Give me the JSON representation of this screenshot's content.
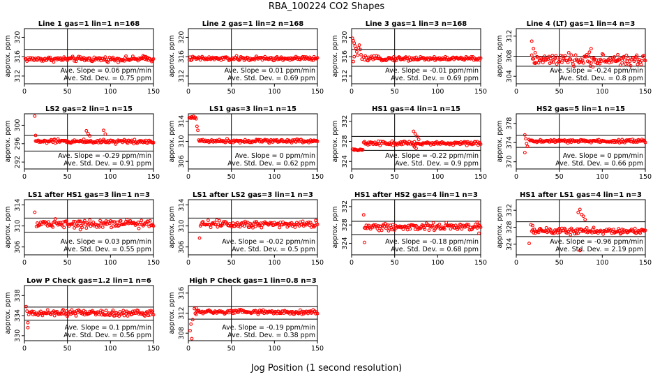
{
  "figure": {
    "title": "RBA_100224  CO2 Shapes",
    "xlabel": "Jog Position (1 second resolution)"
  },
  "style": {
    "marker_color": "#ff0000",
    "line_color": "#000000"
  },
  "chart_data": [
    {
      "type": "scatter",
      "title": "Line 1 gas=1 lin=1 n=168",
      "ylabel": "approx. ppm",
      "xlim": [
        0,
        150
      ],
      "ylim": [
        310.4,
        321.8
      ],
      "xticks": [
        0,
        50,
        100,
        150
      ],
      "yticks": [
        312,
        316,
        320
      ],
      "vline": 50,
      "hlines": [
        317.5,
        314.0
      ],
      "base": 315.5,
      "noise": 0.25,
      "x_start": 1,
      "spikes": [
        [
          138,
          316.2
        ],
        [
          141,
          316.0
        ],
        [
          143,
          315.8
        ]
      ],
      "slope_label": "Ave. Slope =",
      "slope_value": "0.06 ppm/min",
      "sd_label": "Ave. Std. Dev. =",
      "sd_value": "0.75 ppm"
    },
    {
      "type": "scatter",
      "title": "Line 2 gas=1 lin=2 n=168",
      "ylabel": "approx. ppm",
      "xlim": [
        0,
        150
      ],
      "ylim": [
        310.4,
        321.8
      ],
      "xticks": [
        0,
        50,
        100,
        150
      ],
      "yticks": [
        312,
        316,
        320
      ],
      "vline": 50,
      "hlines": [
        317.5,
        314.0
      ],
      "base": 315.6,
      "noise": 0.22,
      "x_start": 1,
      "spikes": [],
      "slope_label": "Ave. Slope =",
      "slope_value": "0.01 ppm/min",
      "sd_label": "Ave. Std. Dev. =",
      "sd_value": "0.69 ppm"
    },
    {
      "type": "scatter",
      "title": "Line 3 gas=1 lin=3 n=168",
      "ylabel": "approx. ppm",
      "xlim": [
        0,
        150
      ],
      "ylim": [
        310.4,
        321.8
      ],
      "xticks": [
        0,
        50,
        100,
        150
      ],
      "yticks": [
        312,
        316,
        320
      ],
      "vline": 50,
      "hlines": [
        317.5,
        314.0
      ],
      "base": 315.6,
      "noise": 0.22,
      "x_start": 14,
      "spikes": [
        [
          1,
          319.8
        ],
        [
          2,
          319.3
        ],
        [
          3,
          318.8
        ],
        [
          4,
          318.2
        ],
        [
          5,
          317.6
        ],
        [
          6,
          317.0
        ],
        [
          7,
          316.3
        ],
        [
          8,
          317.8
        ],
        [
          9,
          318.4
        ],
        [
          10,
          317.5
        ],
        [
          11,
          316.4
        ],
        [
          12,
          315.5
        ],
        [
          3,
          316.0
        ],
        [
          2,
          315.0
        ]
      ],
      "slope_label": "Ave. Slope =",
      "slope_value": "-0.01 ppm/min",
      "sd_label": "Ave. Std. Dev. =",
      "sd_value": "0.69 ppm"
    },
    {
      "type": "scatter",
      "title": "Line 4 (LT) gas=1 lin=4 n=3",
      "ylabel": "approx. ppm",
      "xlim": [
        0,
        150
      ],
      "ylim": [
        302.5,
        313.5
      ],
      "xticks": [
        0,
        50,
        100,
        150
      ],
      "yticks": [
        304,
        308,
        312
      ],
      "vline": 50,
      "hlines": [
        308.0,
        306.0
      ],
      "base": 307.2,
      "noise": 0.55,
      "x_start": 18,
      "spikes": [
        [
          18,
          311.0
        ],
        [
          20,
          309.5
        ],
        [
          22,
          308.7
        ],
        [
          85,
          308.8
        ],
        [
          87,
          309.5
        ],
        [
          90,
          307.6
        ],
        [
          118,
          308.3
        ],
        [
          140,
          308.2
        ]
      ],
      "slope_label": "Ave. Slope =",
      "slope_value": "-0.24 ppm/min",
      "sd_label": "Ave. Std. Dev. =",
      "sd_value": "0.8 ppm"
    },
    {
      "type": "scatter",
      "title": "LS2 gas=2 lin=1 n=15",
      "ylabel": "approx. ppm",
      "xlim": [
        0,
        150
      ],
      "ylim": [
        290.5,
        302.5
      ],
      "xticks": [
        0,
        50,
        100,
        150
      ],
      "yticks": [
        292,
        296,
        300
      ],
      "vline": 50,
      "hlines": [
        297.8,
        294.4
      ],
      "base": 296.5,
      "noise": 0.22,
      "x_start": 13,
      "spikes": [
        [
          12,
          302.0
        ],
        [
          13,
          297.8
        ],
        [
          72,
          298.8
        ],
        [
          74,
          298.2
        ],
        [
          76,
          297.7
        ],
        [
          92,
          298.9
        ],
        [
          94,
          298.1
        ]
      ],
      "slope_label": "Ave. Slope =",
      "slope_value": "-0.29 ppm/min",
      "sd_label": "Ave. Std. Dev. =",
      "sd_value": "0.91 ppm"
    },
    {
      "type": "scatter",
      "title": "LS1 gas=3 lin=1 n=15",
      "ylabel": "approx. ppm",
      "xlim": [
        0,
        150
      ],
      "ylim": [
        304.5,
        315.5
      ],
      "xticks": [
        0,
        50,
        100,
        150
      ],
      "yticks": [
        306,
        310,
        314
      ],
      "vline": 50,
      "hlines": [
        311.3,
        308.9
      ],
      "base": 310.1,
      "noise": 0.18,
      "x_start": 12,
      "spikes": [
        [
          1,
          314.7
        ],
        [
          2,
          314.8
        ],
        [
          3,
          314.6
        ],
        [
          4,
          314.9
        ],
        [
          5,
          314.7
        ],
        [
          6,
          315.0
        ],
        [
          7,
          314.6
        ],
        [
          8,
          314.8
        ],
        [
          9,
          314.5
        ],
        [
          10,
          313.0
        ],
        [
          11,
          312.2
        ]
      ],
      "slope_label": "Ave. Slope =",
      "slope_value": "0 ppm/min",
      "sd_label": "Ave. Std. Dev. =",
      "sd_value": "0.62 ppm"
    },
    {
      "type": "scatter",
      "title": "HS1 gas=4 lin=1 n=15",
      "ylabel": "approx. ppm",
      "xlim": [
        0,
        150
      ],
      "ylim": [
        322.5,
        333.5
      ],
      "xticks": [
        0,
        50,
        100,
        150
      ],
      "yticks": [
        324,
        328,
        332
      ],
      "vline": 50,
      "hlines": [
        329.0,
        326.2
      ],
      "base": 327.6,
      "noise": 0.2,
      "x_start": 14,
      "lowrun": [
        1,
        13,
        326.3
      ],
      "spikes": [
        [
          72,
          330.0
        ],
        [
          74,
          329.5
        ],
        [
          76,
          329.0
        ],
        [
          78,
          328.4
        ],
        [
          73,
          326.9
        ],
        [
          75,
          326.6
        ]
      ],
      "slope_label": "Ave. Slope =",
      "slope_value": "-0.22 ppm/min",
      "sd_label": "Ave. Std. Dev. =",
      "sd_value": "0.9 ppm"
    },
    {
      "type": "scatter",
      "title": "HS2 gas=5 lin=1 n=15",
      "ylabel": "approx. ppm",
      "xlim": [
        0,
        150
      ],
      "ylim": [
        368.5,
        380.0
      ],
      "xticks": [
        0,
        50,
        100,
        150
      ],
      "yticks": [
        370,
        374,
        378
      ],
      "vline": 50,
      "hlines": [
        375.5,
        373.0
      ],
      "base": 374.3,
      "noise": 0.18,
      "x_start": 15,
      "spikes": [
        [
          10,
          375.6
        ],
        [
          11,
          374.8
        ],
        [
          12,
          373.8
        ],
        [
          10,
          371.9
        ],
        [
          13,
          373.2
        ]
      ],
      "slope_label": "Ave. Slope =",
      "slope_value": "0 ppm/min",
      "sd_label": "Ave. Std. Dev. =",
      "sd_value": "0.66 ppm"
    },
    {
      "type": "scatter",
      "title": "LS1 after HS1 gas=3 lin=1 n=3",
      "ylabel": "approx. ppm",
      "xlim": [
        0,
        150
      ],
      "ylim": [
        304.5,
        315.0
      ],
      "xticks": [
        0,
        50,
        100,
        150
      ],
      "yticks": [
        306,
        310,
        314
      ],
      "vline": 50,
      "hlines": [
        311.5,
        308.8
      ],
      "base": 310.5,
      "noise": 0.38,
      "x_start": 14,
      "spikes": [
        [
          12,
          312.6
        ],
        [
          65,
          309.3
        ]
      ],
      "slope_label": "Ave. Slope =",
      "slope_value": "0.03 ppm/min",
      "sd_label": "Ave. Std. Dev. =",
      "sd_value": "0.55 ppm"
    },
    {
      "type": "scatter",
      "title": "LS1 after LS2 gas=3 lin=1 n=3",
      "ylabel": "approx. ppm",
      "xlim": [
        0,
        150
      ],
      "ylim": [
        304.5,
        315.0
      ],
      "xticks": [
        0,
        50,
        100,
        150
      ],
      "yticks": [
        306,
        310,
        314
      ],
      "vline": 50,
      "hlines": [
        311.5,
        308.8
      ],
      "base": 310.4,
      "noise": 0.35,
      "x_start": 14,
      "spikes": [
        [
          13,
          307.7
        ]
      ],
      "slope_label": "Ave. Slope =",
      "slope_value": "-0.02 ppm/min",
      "sd_label": "Ave. Std. Dev. =",
      "sd_value": "0.5 ppm"
    },
    {
      "type": "scatter",
      "title": "HS1 after HS2 gas=4 lin=1 n=3",
      "ylabel": "approx. ppm",
      "xlim": [
        0,
        150
      ],
      "ylim": [
        321.5,
        333.5
      ],
      "xticks": [
        0,
        50,
        100,
        150
      ],
      "yticks": [
        324,
        328,
        332
      ],
      "vline": 50,
      "hlines": [
        328.8,
        325.9
      ],
      "base": 327.6,
      "noise": 0.4,
      "x_start": 15,
      "spikes": [
        [
          14,
          330.2
        ],
        [
          15,
          324.2
        ],
        [
          146,
          328.6
        ],
        [
          148,
          326.2
        ]
      ],
      "slope_label": "Ave. Slope =",
      "slope_value": "-0.18 ppm/min",
      "sd_label": "Ave. Std. Dev. =",
      "sd_value": "0.68 ppm"
    },
    {
      "type": "scatter",
      "title": "HS1 after LS1 gas=4 lin=1 n=3",
      "ylabel": "approx. ppm",
      "xlim": [
        0,
        150
      ],
      "ylim": [
        321.5,
        334.5
      ],
      "xticks": [
        0,
        50,
        100,
        150
      ],
      "yticks": [
        324,
        328,
        332
      ],
      "vline": 50,
      "hlines": [
        329.3,
        325.8
      ],
      "base": 327.1,
      "noise": 0.35,
      "x_start": 18,
      "spikes": [
        [
          15,
          324.2
        ],
        [
          17,
          328.6
        ],
        [
          19,
          328.4
        ],
        [
          72,
          331.5
        ],
        [
          74,
          332.2
        ],
        [
          76,
          331.0
        ],
        [
          78,
          330.6
        ],
        [
          80,
          329.8
        ],
        [
          74,
          322.5
        ]
      ],
      "slope_label": "Ave. Slope =",
      "slope_value": "-0.96 ppm/min",
      "sd_label": "Ave. Std. Dev. =",
      "sd_value": "2.19 ppm"
    },
    {
      "type": "scatter",
      "title": "Low P Check gas=1.2 lin=1 n=6",
      "ylabel": "approx. ppm",
      "xlim": [
        0,
        150
      ],
      "ylim": [
        329.0,
        340.0
      ],
      "xticks": [
        0,
        50,
        100,
        150
      ],
      "yticks": [
        330,
        334,
        338
      ],
      "vline": 50,
      "hlines": [
        335.7,
        333.1
      ],
      "base": 334.5,
      "noise": 0.3,
      "x_start": 6,
      "spikes": [
        [
          2,
          335.8
        ],
        [
          3,
          334.9
        ],
        [
          4,
          332.6
        ],
        [
          4,
          331.6
        ],
        [
          5,
          334.2
        ]
      ],
      "slope_label": "Ave. Slope =",
      "slope_value": "0.1 ppm/min",
      "sd_label": "Ave. Std. Dev. =",
      "sd_value": "0.56 ppm"
    },
    {
      "type": "scatter",
      "title": "High P Check gas=1 lin=0.8 n=3",
      "ylabel": "approx. ppm",
      "xlim": [
        0,
        150
      ],
      "ylim": [
        306.5,
        317.5
      ],
      "xticks": [
        0,
        50,
        100,
        150
      ],
      "yticks": [
        308,
        312,
        316
      ],
      "vline": 50,
      "hlines": [
        313.3,
        310.8
      ],
      "base": 312.2,
      "noise": 0.22,
      "x_start": 8,
      "spikes": [
        [
          2,
          308.5
        ],
        [
          3,
          309.8
        ],
        [
          5,
          310.7
        ],
        [
          7,
          312.9
        ],
        [
          9,
          313.0
        ],
        [
          4,
          306.9
        ]
      ],
      "slope_label": "Ave. Slope =",
      "slope_value": "-0.19 ppm/min",
      "sd_label": "Ave. Std. Dev. =",
      "sd_value": "0.38 ppm"
    }
  ]
}
